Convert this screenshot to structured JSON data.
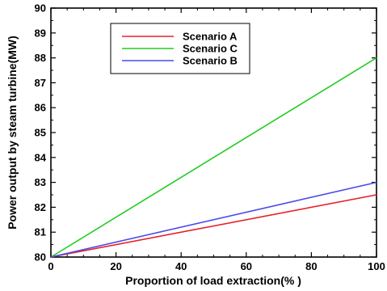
{
  "chart_data": {
    "type": "line",
    "title": "",
    "xlabel": "Proportion of load extraction(% )",
    "ylabel": "Power output by steam turbine(MW)",
    "xlim": [
      0,
      100
    ],
    "ylim": [
      80,
      90
    ],
    "x_ticks": [
      "0",
      "20",
      "40",
      "60",
      "80",
      "100"
    ],
    "y_ticks": [
      "80",
      "81",
      "82",
      "83",
      "84",
      "85",
      "86",
      "87",
      "88",
      "89",
      "90"
    ],
    "grid": false,
    "legend_position": "top-left",
    "series": [
      {
        "name": "Scenario A",
        "color": "#e8202a",
        "x": [
          0,
          100
        ],
        "y": [
          80,
          82.5
        ]
      },
      {
        "name": "Scenario C",
        "color": "#22cc22",
        "x": [
          0,
          100
        ],
        "y": [
          80,
          88
        ]
      },
      {
        "name": "Scenario B",
        "color": "#4a4ae8",
        "x": [
          0,
          100
        ],
        "y": [
          80,
          83
        ]
      }
    ]
  }
}
